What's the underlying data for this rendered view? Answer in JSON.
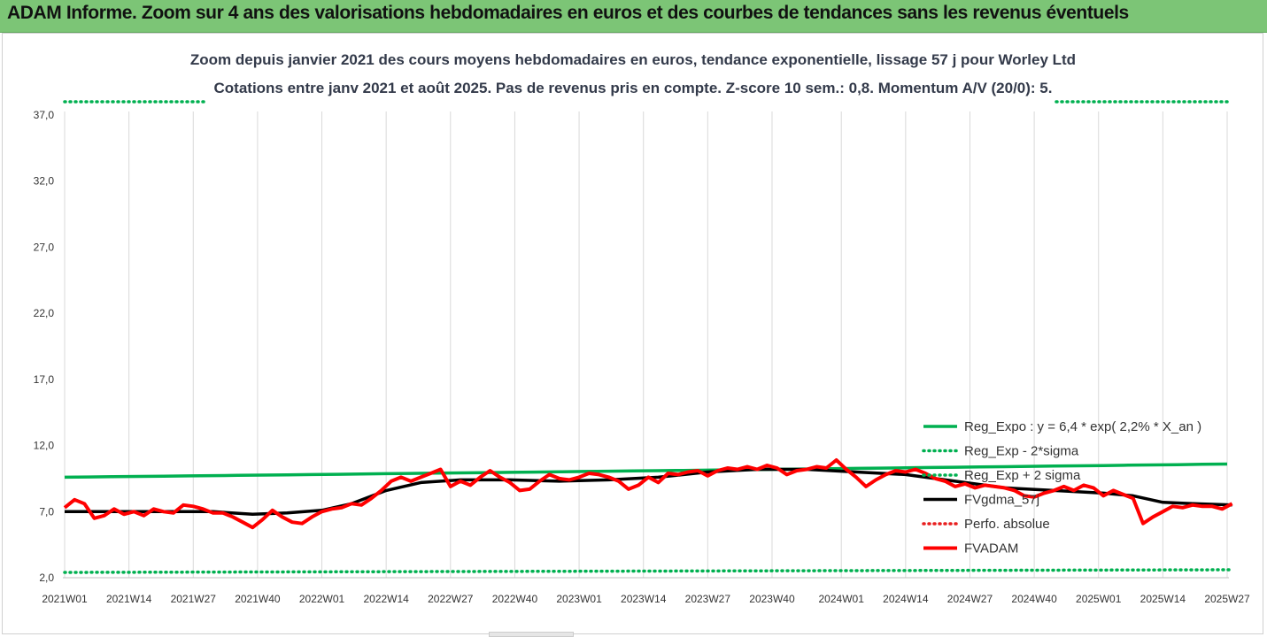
{
  "banner": {
    "title": "ADAM Informe. Zoom sur 4 ans des valorisations hebdomadaires en euros et des courbes de tendances sans les revenus éventuels"
  },
  "chart_data": {
    "type": "line",
    "title": "Zoom depuis janvier 2021 des cours moyens hebdomadaires en euros, tendance exponentielle, lissage 57 j pour Worley Ltd",
    "subtitle": "Cotations entre janv 2021 et août 2025.  Pas de revenus pris en compte. Z-score 10 sem.: 0,8. Momentum A/V (20/0): 5.",
    "xlabel": "",
    "ylabel": "",
    "ylim": [
      2.0,
      38.5
    ],
    "yticks": [
      "2,0",
      "7,0",
      "12,0",
      "17,0",
      "22,0",
      "27,0",
      "32,0",
      "37,0"
    ],
    "ytick_values": [
      2,
      7,
      12,
      17,
      22,
      27,
      32,
      37
    ],
    "x_weeks_total": 236,
    "xtick_labels": [
      "2021W01",
      "2021W14",
      "2021W27",
      "2021W40",
      "2022W01",
      "2022W14",
      "2022W27",
      "2022W40",
      "2023W01",
      "2023W14",
      "2023W27",
      "2023W40",
      "2024W01",
      "2024W14",
      "2024W27",
      "2024W40",
      "2025W01",
      "2025W14",
      "2025W27"
    ],
    "xtick_index": [
      0,
      13,
      26,
      39,
      52,
      65,
      78,
      91,
      104,
      117,
      130,
      143,
      157,
      170,
      183,
      196,
      209,
      222,
      235
    ],
    "legend_position": "right",
    "grid": "vertical",
    "series": [
      {
        "name": "Reg_Expo : y = 6,4 * exp( 2,2% *  X_an )",
        "color": "#00b050",
        "style": "solid",
        "x": [
          0,
          236
        ],
        "values": [
          9.6,
          10.6
        ],
        "smooth": "exp"
      },
      {
        "name": "Reg_Exp - 2*sigma",
        "color": "#00b050",
        "style": "dotted",
        "x": [
          0,
          236
        ],
        "values": [
          2.4,
          2.6
        ]
      },
      {
        "name": "Reg_Exp + 2 sigma",
        "color": "#00b050",
        "style": "dotted",
        "x": [
          0,
          236
        ],
        "values": [
          38.0,
          38.0
        ]
      },
      {
        "name": "FVgdma_57j",
        "color": "#000000",
        "style": "solid",
        "x": [
          0,
          10,
          20,
          30,
          38,
          45,
          52,
          58,
          65,
          72,
          80,
          90,
          100,
          110,
          120,
          130,
          140,
          150,
          160,
          170,
          180,
          190,
          200,
          210,
          216,
          222,
          228,
          236
        ],
        "values": [
          7.0,
          7.0,
          7.0,
          7.0,
          6.8,
          6.9,
          7.1,
          7.6,
          8.6,
          9.2,
          9.4,
          9.4,
          9.3,
          9.4,
          9.6,
          10.0,
          10.2,
          10.2,
          10.0,
          9.8,
          9.3,
          8.8,
          8.6,
          8.4,
          8.2,
          7.7,
          7.6,
          7.5
        ]
      },
      {
        "name": "Perfo. absolue",
        "color": "#e81e1e",
        "style": "dotted",
        "x": [],
        "values": []
      },
      {
        "name": "FVADAM",
        "color": "#ff0000",
        "style": "solid-thick",
        "x": [
          0,
          2,
          4,
          6,
          8,
          10,
          12,
          14,
          16,
          18,
          20,
          22,
          24,
          26,
          28,
          30,
          32,
          34,
          36,
          38,
          40,
          42,
          44,
          46,
          48,
          50,
          52,
          54,
          56,
          58,
          60,
          62,
          64,
          66,
          68,
          70,
          72,
          74,
          76,
          78,
          80,
          82,
          84,
          86,
          88,
          90,
          92,
          94,
          96,
          98,
          100,
          102,
          104,
          106,
          108,
          110,
          112,
          114,
          116,
          118,
          120,
          122,
          124,
          126,
          128,
          130,
          132,
          134,
          136,
          138,
          140,
          142,
          144,
          146,
          148,
          150,
          152,
          154,
          156,
          158,
          160,
          162,
          164,
          166,
          168,
          170,
          172,
          174,
          176,
          178,
          180,
          182,
          184,
          186,
          188,
          190,
          192,
          194,
          196,
          198,
          200,
          202,
          204,
          206,
          208,
          210,
          212,
          214,
          216,
          218,
          220,
          222,
          224,
          226,
          228,
          230,
          232,
          234,
          236
        ],
        "values": [
          7.3,
          7.9,
          7.6,
          6.5,
          6.7,
          7.2,
          6.8,
          7.0,
          6.7,
          7.2,
          7.0,
          6.9,
          7.5,
          7.4,
          7.2,
          6.9,
          6.9,
          6.6,
          6.2,
          5.8,
          6.4,
          7.1,
          6.6,
          6.2,
          6.1,
          6.6,
          7.0,
          7.2,
          7.3,
          7.6,
          7.5,
          8.0,
          8.6,
          9.3,
          9.6,
          9.3,
          9.6,
          9.9,
          10.2,
          8.9,
          9.3,
          9.0,
          9.6,
          10.1,
          9.6,
          9.2,
          8.6,
          8.7,
          9.3,
          9.8,
          9.5,
          9.4,
          9.6,
          9.9,
          9.8,
          9.6,
          9.3,
          8.7,
          9.0,
          9.6,
          9.2,
          9.9,
          9.8,
          10.0,
          10.1,
          9.7,
          10.1,
          10.3,
          10.2,
          10.4,
          10.2,
          10.5,
          10.3,
          9.8,
          10.1,
          10.2,
          10.4,
          10.3,
          10.9,
          10.2,
          9.6,
          8.9,
          9.4,
          9.8,
          10.1,
          10.0,
          10.2,
          9.9,
          9.5,
          9.3,
          8.9,
          9.1,
          8.8,
          9.0,
          8.9,
          8.8,
          8.6,
          8.2,
          8.1,
          8.4,
          8.6,
          8.9,
          8.6,
          9.0,
          8.8,
          8.2,
          8.6,
          8.3,
          8.0,
          6.1,
          6.6,
          7.0,
          7.4,
          7.3,
          7.5,
          7.4,
          7.4,
          7.2,
          7.6
        ]
      }
    ]
  }
}
